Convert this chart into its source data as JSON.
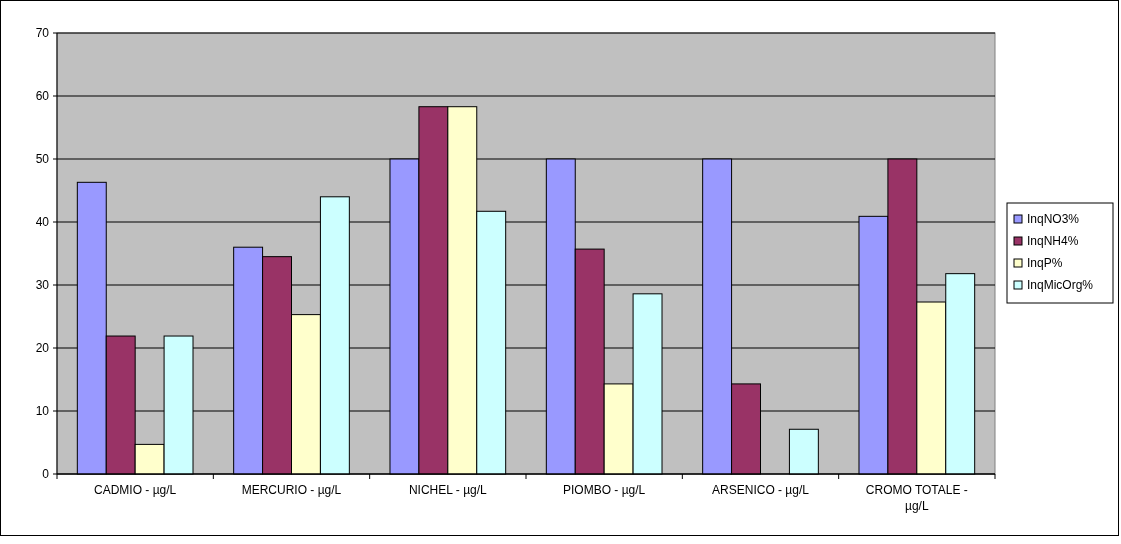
{
  "chart_data": {
    "type": "bar",
    "categories": [
      "CADMIO - µg/L",
      "MERCURIO - µg/L",
      "NICHEL - µg/L",
      "PIOMBO - µg/L",
      "ARSENICO - µg/L",
      "CROMO TOTALE - µg/L"
    ],
    "series": [
      {
        "name": "InqNO3%",
        "color": "#9999ff",
        "values": [
          46.3,
          36,
          50,
          50,
          50,
          40.9
        ]
      },
      {
        "name": "InqNH4%",
        "color": "#993366",
        "values": [
          21.9,
          34.5,
          58.3,
          35.7,
          14.3,
          50
        ]
      },
      {
        "name": "InqP%",
        "color": "#ffffcc",
        "values": [
          4.7,
          25.3,
          58.3,
          14.3,
          0,
          27.3
        ]
      },
      {
        "name": "InqMicOrg%",
        "color": "#ccffff",
        "values": [
          21.9,
          44,
          41.7,
          28.6,
          7.1,
          31.8
        ]
      }
    ],
    "ylim": [
      0,
      70
    ],
    "yticks": [
      0,
      10,
      20,
      30,
      40,
      50,
      60,
      70
    ],
    "grid": "y",
    "legend": "right"
  }
}
